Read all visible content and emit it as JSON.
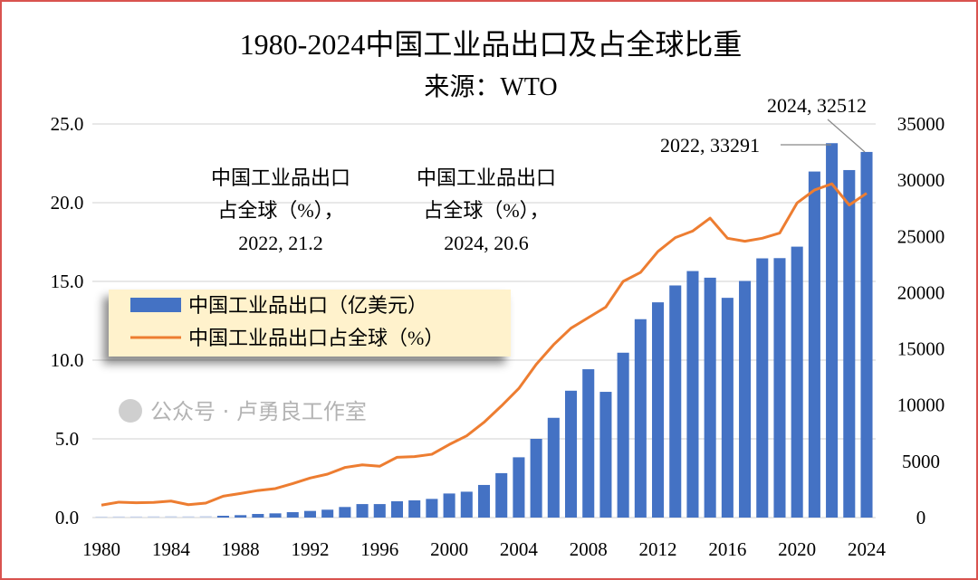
{
  "chart_data": {
    "type": "bar+line",
    "title": "1980-2024中国工业品出口及占全球比重",
    "subtitle": "来源：WTO",
    "x": [
      1980,
      1981,
      1982,
      1983,
      1984,
      1985,
      1986,
      1987,
      1988,
      1989,
      1990,
      1991,
      1992,
      1993,
      1994,
      1995,
      1996,
      1997,
      1998,
      1999,
      2000,
      2001,
      2002,
      2003,
      2004,
      2005,
      2006,
      2007,
      2008,
      2009,
      2010,
      2011,
      2012,
      2013,
      2014,
      2015,
      2016,
      2017,
      2018,
      2019,
      2020,
      2021,
      2022,
      2023,
      2024
    ],
    "x_tick_labels": [
      "1980",
      "1984",
      "1988",
      "1992",
      "1996",
      "2000",
      "2004",
      "2008",
      "2012",
      "2016",
      "2020",
      "2024"
    ],
    "y_left": {
      "range": [
        0,
        25
      ],
      "tick_labels": [
        "0.0",
        "5.0",
        "10.0",
        "15.0",
        "20.0",
        "25.0"
      ]
    },
    "y_right": {
      "range": [
        0,
        35000
      ],
      "tick_labels": [
        "0",
        "5000",
        "10000",
        "15000",
        "20000",
        "25000",
        "30000",
        "35000"
      ]
    },
    "grid": true,
    "legend_placement": "center-left",
    "series": [
      {
        "name": "中国工业品出口（亿美元）",
        "type": "bar",
        "axis": "right",
        "color": "#4472c4",
        "values": [
          90,
          100,
          100,
          110,
          120,
          110,
          130,
          160,
          215,
          320,
          375,
          480,
          590,
          700,
          940,
          1200,
          1200,
          1450,
          1530,
          1660,
          2140,
          2300,
          2900,
          3950,
          5360,
          7000,
          8870,
          11280,
          13190,
          11180,
          14660,
          17640,
          19140,
          20640,
          21920,
          21330,
          19540,
          21040,
          23050,
          23070,
          24090,
          30770,
          33291,
          30900,
          32512
        ]
      },
      {
        "name": "中国工业品出口占全球（%）",
        "type": "line",
        "axis": "left",
        "color": "#ed7d31",
        "values": [
          0.79,
          0.98,
          0.94,
          0.96,
          1.05,
          0.82,
          0.92,
          1.36,
          1.53,
          1.72,
          1.84,
          2.16,
          2.51,
          2.76,
          3.18,
          3.35,
          3.26,
          3.83,
          3.87,
          4.02,
          4.64,
          5.19,
          6.05,
          7.09,
          8.2,
          9.73,
          10.98,
          12.03,
          12.7,
          13.37,
          15.0,
          15.57,
          16.9,
          17.78,
          18.2,
          19.02,
          17.74,
          17.55,
          17.74,
          18.07,
          19.98,
          20.8,
          21.2,
          19.85,
          20.6
        ]
      }
    ],
    "annotations": [
      {
        "lines": [
          "中国工业品出口",
          "占全球（%），",
          "2022, 21.2"
        ]
      },
      {
        "lines": [
          "中国工业品出口",
          "占全球（%），",
          "2024, 20.6"
        ]
      },
      {
        "lines": [
          "2022, 33291"
        ]
      },
      {
        "lines": [
          "2024, 32512"
        ]
      }
    ]
  },
  "watermark": "公众号 · 卢勇良工作室"
}
